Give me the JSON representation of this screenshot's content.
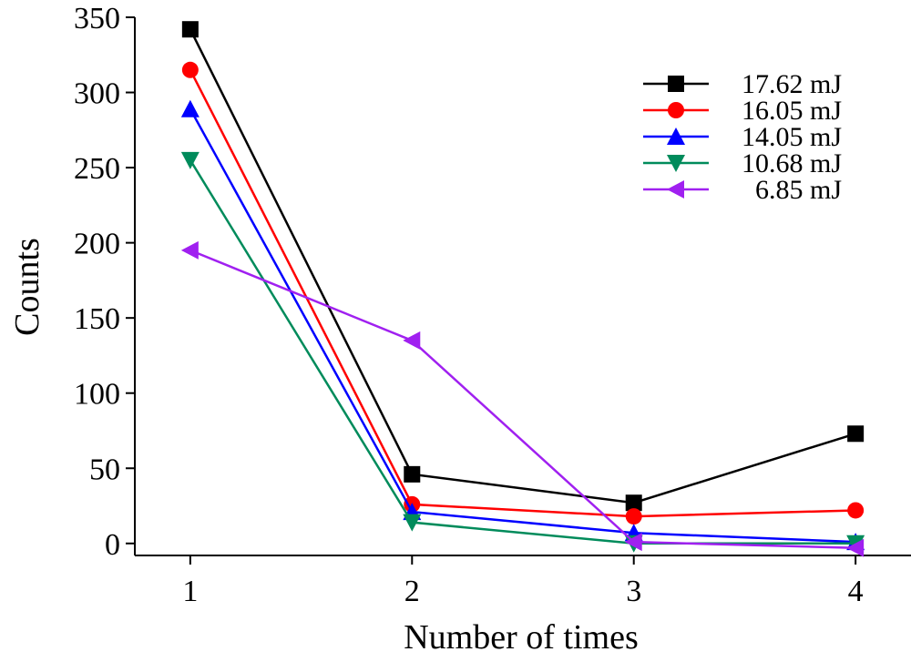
{
  "chart_data": {
    "type": "line",
    "xlabel": "Number of times",
    "ylabel": "Counts",
    "x": [
      1,
      2,
      3,
      4
    ],
    "xticks": [
      "1",
      "2",
      "3",
      "4"
    ],
    "xlim": [
      0.75,
      4.25
    ],
    "ylim": [
      -8,
      350
    ],
    "yticks": [
      "0",
      "50",
      "100",
      "150",
      "200",
      "250",
      "300",
      "350"
    ],
    "grid": false,
    "legend_position": "top-right",
    "series": [
      {
        "name": "17.62 mJ",
        "values": [
          342,
          46,
          27,
          73
        ],
        "color": "#000000",
        "marker": "square"
      },
      {
        "name": "16.05 mJ",
        "values": [
          315,
          26,
          18,
          22
        ],
        "color": "#ff0000",
        "marker": "circle"
      },
      {
        "name": "14.05 mJ",
        "values": [
          289,
          21,
          7,
          1
        ],
        "color": "#0000ff",
        "marker": "triangle-up"
      },
      {
        "name": "10.68 mJ",
        "values": [
          255,
          14,
          0,
          0
        ],
        "color": "#008b5b",
        "marker": "triangle-down"
      },
      {
        "name": "6.85 mJ",
        "values": [
          195,
          135,
          1,
          -3
        ],
        "color": "#a020f0",
        "marker": "triangle-left"
      }
    ]
  }
}
